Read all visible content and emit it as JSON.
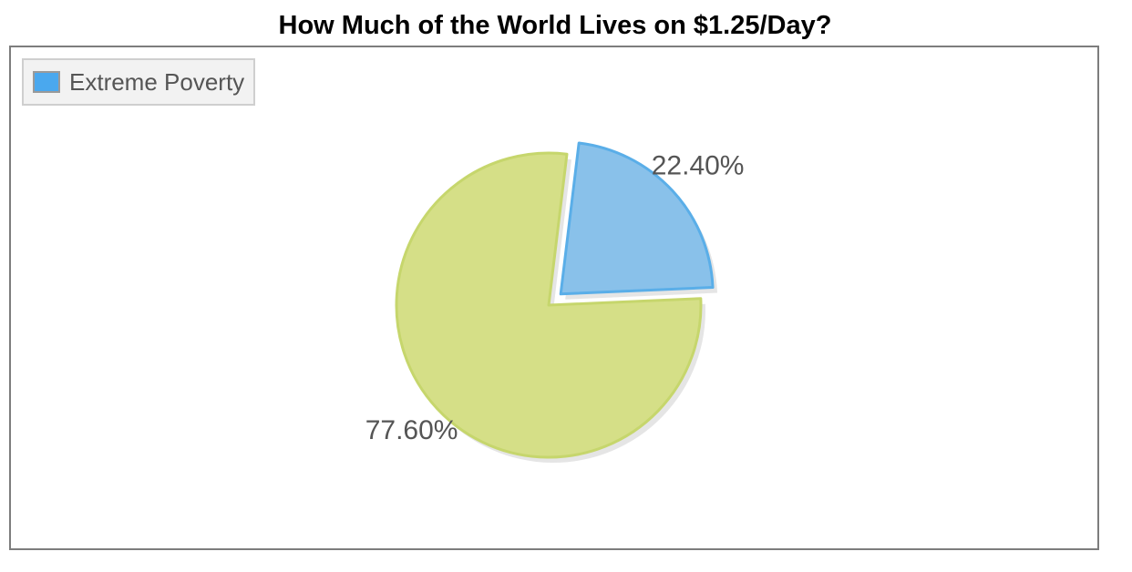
{
  "chart_data": {
    "type": "pie",
    "title": "How Much of the World Lives on $1.25/Day?",
    "legend": {
      "placement": "top-left",
      "entries": [
        "Extreme Poverty"
      ]
    },
    "slices": [
      {
        "label": "Extreme Poverty",
        "value": 22.4,
        "display": "22.40%",
        "color": "#89c1ea",
        "edge_color": "#5aaee8",
        "exploded": true
      },
      {
        "label": "",
        "value": 77.6,
        "display": "77.60%",
        "color": "#d5df87",
        "edge_color": "#c6d66c",
        "exploded": false
      }
    ]
  },
  "colors": {
    "legend_swatch": "#4aa8ee",
    "label_text": "#555555",
    "shadow": "#dcdcdc"
  }
}
